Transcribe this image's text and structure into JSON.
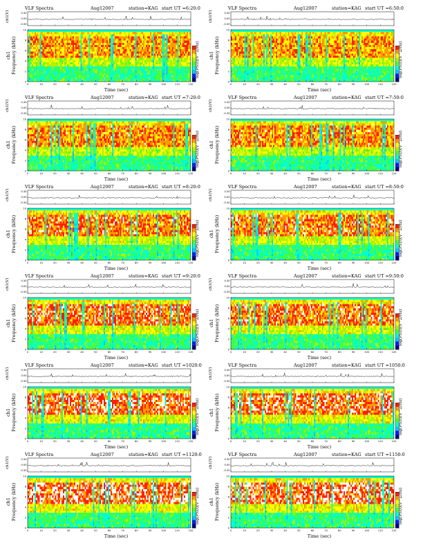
{
  "chart_data": {
    "type": "heatmap",
    "layout": "grid of 12 VLF spectrogram panels, 2 columns x 6 rows",
    "colormap": [
      "#00007a",
      "#0020ff",
      "#00c8ff",
      "#00ffd0",
      "#46ff3c",
      "#b4f000",
      "#ffff00",
      "#ff9a00",
      "#ff2000",
      "#ffffff"
    ],
    "panels": [
      {
        "title": "VLF Spectra",
        "date": "Aug12007",
        "station": "station=KAG",
        "start_ut": "start UT =6:20:0",
        "ch_label": "ch1(V)",
        "ylabel_top": "ch1",
        "ylabel_bottom": "Frequency (kHz)",
        "xlabel": "Time (sec)",
        "colorbar_label": "log(PSD)(V^2/Hz)",
        "x_ticks": [
          "0",
          "10",
          "20",
          "30",
          "40",
          "50",
          "60",
          "70",
          "80",
          "90",
          "100",
          "110",
          "120"
        ],
        "y_ticks": [
          "0",
          "2",
          "4",
          "6",
          "8",
          "10"
        ],
        "waveform_ticks": [
          "0.30",
          "0.00",
          "-0.30"
        ],
        "x_range": [
          0,
          120
        ],
        "y_range": [
          0,
          10
        ]
      },
      {
        "title": "VLF Spectra",
        "date": "Aug12007",
        "station": "station=KAG",
        "start_ut": "start UT =6:50:0",
        "ch_label": "ch1(V)",
        "ylabel_top": "ch1",
        "ylabel_bottom": "Frequency (kHz)",
        "xlabel": "Time (sec)",
        "colorbar_label": "log(PSD)(V^2/Hz)",
        "x_ticks": [
          "0",
          "10",
          "20",
          "30",
          "40",
          "50",
          "60",
          "70",
          "80",
          "90",
          "100",
          "110",
          "120"
        ],
        "y_ticks": [
          "0",
          "2",
          "4",
          "6",
          "8",
          "10"
        ],
        "waveform_ticks": [
          "0.30",
          "0.00",
          "-0.30"
        ],
        "x_range": [
          0,
          120
        ],
        "y_range": [
          0,
          10
        ]
      },
      {
        "title": "VLF Spectra",
        "date": "Aug12007",
        "station": "station=KAG",
        "start_ut": "start UT =7:20:0",
        "ch_label": "ch1(V)",
        "ylabel_top": "ch1",
        "ylabel_bottom": "Frequency (kHz)",
        "xlabel": "Time (sec)",
        "colorbar_label": "log(PSD)(V^2/Hz)",
        "x_ticks": [
          "0",
          "10",
          "20",
          "30",
          "40",
          "50",
          "60",
          "70",
          "80",
          "90",
          "100",
          "110",
          "120"
        ],
        "y_ticks": [
          "0",
          "2",
          "4",
          "6",
          "8",
          "10"
        ],
        "waveform_ticks": [
          "0.30",
          "0.00",
          "-0.30"
        ],
        "x_range": [
          0,
          120
        ],
        "y_range": [
          0,
          10
        ]
      },
      {
        "title": "VLF Spectra",
        "date": "Aug12007",
        "station": "station=KAG",
        "start_ut": "start UT =7:50:0",
        "ch_label": "ch1(V)",
        "ylabel_top": "ch1",
        "ylabel_bottom": "Frequency (kHz)",
        "xlabel": "Time (sec)",
        "colorbar_label": "log(PSD)(V^2/Hz)",
        "x_ticks": [
          "0",
          "10",
          "20",
          "30",
          "40",
          "50",
          "60",
          "70",
          "80",
          "90",
          "100",
          "110",
          "120"
        ],
        "y_ticks": [
          "0",
          "2",
          "4",
          "6",
          "8",
          "10"
        ],
        "waveform_ticks": [
          "0.30",
          "0.00",
          "-0.30"
        ],
        "x_range": [
          0,
          120
        ],
        "y_range": [
          0,
          10
        ]
      },
      {
        "title": "VLF Spectra",
        "date": "Aug12007",
        "station": "station=KAG",
        "start_ut": "start UT =8:20:0",
        "ch_label": "ch1(V)",
        "ylabel_top": "ch1",
        "ylabel_bottom": "Frequency (kHz)",
        "xlabel": "Time (sec)",
        "colorbar_label": "log(PSD)(V^2/Hz)",
        "x_ticks": [
          "0",
          "10",
          "20",
          "30",
          "40",
          "50",
          "60",
          "70",
          "80",
          "90",
          "100",
          "110",
          "120"
        ],
        "y_ticks": [
          "0",
          "2",
          "4",
          "6",
          "8",
          "10"
        ],
        "waveform_ticks": [
          "0.30",
          "0.00",
          "-0.30"
        ],
        "x_range": [
          0,
          120
        ],
        "y_range": [
          0,
          10
        ]
      },
      {
        "title": "VLF Spectra",
        "date": "Aug12007",
        "station": "station=KAG",
        "start_ut": "start UT =8:50:0",
        "ch_label": "ch1(V)",
        "ylabel_top": "ch1",
        "ylabel_bottom": "Frequency (kHz)",
        "xlabel": "Time (sec)",
        "colorbar_label": "log(PSD)(V^2/Hz)",
        "x_ticks": [
          "0",
          "10",
          "20",
          "30",
          "40",
          "50",
          "60",
          "70",
          "80",
          "90",
          "100",
          "110",
          "120"
        ],
        "y_ticks": [
          "0",
          "2",
          "4",
          "6",
          "8",
          "10"
        ],
        "waveform_ticks": [
          "0.30",
          "0.00",
          "-0.30"
        ],
        "x_range": [
          0,
          120
        ],
        "y_range": [
          0,
          10
        ]
      },
      {
        "title": "VLF Spectra",
        "date": "Aug12007",
        "station": "station=KAG",
        "start_ut": "start UT =9:20:0",
        "ch_label": "ch1(V)",
        "ylabel_top": "ch1",
        "ylabel_bottom": "Frequency (kHz)",
        "xlabel": "Time (sec)",
        "colorbar_label": "log(PSD)(V^2/Hz)",
        "x_ticks": [
          "0",
          "10",
          "20",
          "30",
          "40",
          "50",
          "60",
          "70",
          "80",
          "90",
          "100",
          "110",
          "120"
        ],
        "y_ticks": [
          "0",
          "2",
          "4",
          "6",
          "8",
          "10"
        ],
        "waveform_ticks": [
          "0.30",
          "0.00",
          "-0.30"
        ],
        "x_range": [
          0,
          120
        ],
        "y_range": [
          0,
          10
        ]
      },
      {
        "title": "VLF Spectra",
        "date": "Aug12007",
        "station": "station=KAG",
        "start_ut": "start UT =9:50:0",
        "ch_label": "ch1(V)",
        "ylabel_top": "ch1",
        "ylabel_bottom": "Frequency (kHz)",
        "xlabel": "Time (sec)",
        "colorbar_label": "log(PSD)(V^2/Hz)",
        "x_ticks": [
          "0",
          "10",
          "20",
          "30",
          "40",
          "50",
          "60",
          "70",
          "80",
          "90",
          "100",
          "110",
          "120"
        ],
        "y_ticks": [
          "0",
          "2",
          "4",
          "6",
          "8",
          "10"
        ],
        "waveform_ticks": [
          "0.30",
          "0.00",
          "-0.30"
        ],
        "x_range": [
          0,
          120
        ],
        "y_range": [
          0,
          10
        ]
      },
      {
        "title": "VLF Spectra",
        "date": "Aug12007",
        "station": "station=KAG",
        "start_ut": "start UT =1020:0",
        "ch_label": "ch1(V)",
        "ylabel_top": "ch1",
        "ylabel_bottom": "Frequency (kHz)",
        "xlabel": "Time (sec)",
        "colorbar_label": "log(PSD)(V^2/Hz)",
        "x_ticks": [
          "0",
          "10",
          "20",
          "30",
          "40",
          "50",
          "60",
          "70",
          "80",
          "90",
          "100",
          "110",
          "120"
        ],
        "y_ticks": [
          "0",
          "2",
          "4",
          "6",
          "8",
          "10"
        ],
        "waveform_ticks": [
          "0.30",
          "0.00",
          "-0.30"
        ],
        "x_range": [
          0,
          120
        ],
        "y_range": [
          0,
          10
        ]
      },
      {
        "title": "VLF Spectra",
        "date": "Aug12007",
        "station": "station=KAG",
        "start_ut": "start UT =1050:0",
        "ch_label": "ch1(V)",
        "ylabel_top": "ch1",
        "ylabel_bottom": "Frequency (kHz)",
        "xlabel": "Time (sec)",
        "colorbar_label": "log(PSD)(V^2/Hz)",
        "x_ticks": [
          "0",
          "10",
          "20",
          "30",
          "40",
          "50",
          "60",
          "70",
          "80",
          "90",
          "100",
          "110",
          "120"
        ],
        "y_ticks": [
          "0",
          "2",
          "4",
          "6",
          "8",
          "10"
        ],
        "waveform_ticks": [
          "0.30",
          "0.00",
          "-0.30"
        ],
        "x_range": [
          0,
          120
        ],
        "y_range": [
          0,
          10
        ]
      },
      {
        "title": "VLF Spectra",
        "date": "Aug12007",
        "station": "station=KAG",
        "start_ut": "start UT =1120:0",
        "ch_label": "ch1(V)",
        "ylabel_top": "ch1",
        "ylabel_bottom": "Frequency (kHz)",
        "xlabel": "Time (sec)",
        "colorbar_label": "log(PSD)(V^2/Hz)",
        "x_ticks": [
          "0",
          "10",
          "20",
          "30",
          "40",
          "50",
          "60",
          "70",
          "80",
          "90",
          "100",
          "110",
          "120"
        ],
        "y_ticks": [
          "0",
          "2",
          "4",
          "6",
          "8",
          "10"
        ],
        "waveform_ticks": [
          "0.30",
          "0.00",
          "-0.30"
        ],
        "x_range": [
          0,
          120
        ],
        "y_range": [
          0,
          10
        ]
      },
      {
        "title": "VLF Spectra",
        "date": "Aug12007",
        "station": "station=KAG",
        "start_ut": "start UT =1150:0",
        "ch_label": "ch1(V)",
        "ylabel_top": "ch1",
        "ylabel_bottom": "Frequency (kHz)",
        "xlabel": "Time (sec)",
        "colorbar_label": "log(PSD)(V^2/Hz)",
        "x_ticks": [
          "0",
          "10",
          "20",
          "30",
          "40",
          "50",
          "60",
          "70",
          "80",
          "90",
          "100",
          "110",
          "120"
        ],
        "y_ticks": [
          "0",
          "2",
          "4",
          "6",
          "8",
          "10"
        ],
        "waveform_ticks": [
          "0.30",
          "0.00",
          "-0.30"
        ],
        "x_range": [
          0,
          120
        ],
        "y_range": [
          0,
          10
        ]
      }
    ]
  }
}
